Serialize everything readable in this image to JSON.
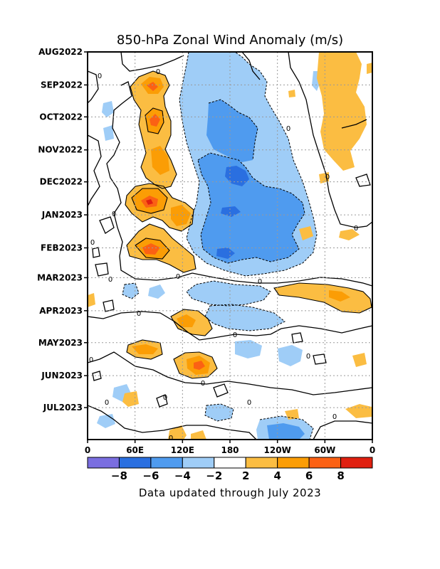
{
  "chart_data": {
    "type": "heatmap",
    "title": "850-hPa Zonal Wind Anomaly (m/s)",
    "footer": "Data updated through July 2023",
    "x_axis": {
      "tick_labels": [
        "0",
        "60E",
        "120E",
        "180",
        "120W",
        "60W",
        "0"
      ],
      "tick_longitudes": [
        0,
        60,
        120,
        180,
        240,
        300,
        360
      ],
      "range": [
        0,
        360
      ]
    },
    "y_axis": {
      "tick_labels": [
        "AUG2022",
        "SEP2022",
        "OCT2022",
        "NOV2022",
        "DEC2022",
        "JAN2023",
        "FEB2023",
        "MAR2023",
        "APR2023",
        "MAY2023",
        "JUN2023",
        "JUL2023"
      ],
      "range": [
        "2022-08-01",
        "2023-07-31"
      ],
      "direction": "top-to-bottom"
    },
    "grid": true,
    "zero_contour_label": "0",
    "colorbar": {
      "levels": [
        -8,
        -6,
        -4,
        -2,
        2,
        4,
        6,
        8
      ],
      "tick_labels": [
        "-8",
        "-6",
        "-4",
        "-2",
        "2",
        "4",
        "6",
        "8"
      ],
      "colors": [
        "#7a6ee0",
        "#2a6fe0",
        "#4f9bef",
        "#9fcdf7",
        "#ffffff",
        "#fbbd42",
        "#fb9d05",
        "#fb6114",
        "#e02010"
      ]
    },
    "anomaly_regions": [
      {
        "name": "warm-west-pacific-sep",
        "lon": [
          70,
          110
        ],
        "date": [
          "2022-08-20",
          "2022-09-10"
        ],
        "peak": 8
      },
      {
        "name": "warm-west-pacific-oct",
        "lon": [
          75,
          105
        ],
        "date": [
          "2022-09-20",
          "2022-10-20"
        ],
        "peak": 7
      },
      {
        "name": "warm-west-pacific-nov",
        "lon": [
          75,
          110
        ],
        "date": [
          "2022-10-25",
          "2022-12-10"
        ],
        "peak": 6
      },
      {
        "name": "warm-west-pacific-jan",
        "lon": [
          60,
          115
        ],
        "date": [
          "2022-12-20",
          "2023-01-20"
        ],
        "peak": 8
      },
      {
        "name": "warm-west-pacific-feb",
        "lon": [
          60,
          110
        ],
        "date": [
          "2023-01-25",
          "2023-02-20"
        ],
        "peak": 8
      },
      {
        "name": "warm-east-pacific-apr",
        "lon": [
          250,
          360
        ],
        "date": [
          "2023-03-05",
          "2023-03-25"
        ],
        "peak": 4
      },
      {
        "name": "warm-west-pacific-apr",
        "lon": [
          110,
          155
        ],
        "date": [
          "2023-03-25",
          "2023-04-25"
        ],
        "peak": 5
      },
      {
        "name": "warm-indian-ocean-may",
        "lon": [
          55,
          100
        ],
        "date": [
          "2023-04-25",
          "2023-05-15"
        ],
        "peak": 6
      },
      {
        "name": "warm-dateline-may",
        "lon": [
          110,
          160
        ],
        "date": [
          "2023-05-01",
          "2023-06-01"
        ],
        "peak": 6
      },
      {
        "name": "warm-east-pacific-sep",
        "lon": [
          290,
          340
        ],
        "date": [
          "2022-08-01",
          "2022-12-15"
        ],
        "peak": 4
      },
      {
        "name": "easterly-central-pacific",
        "lon": [
          140,
          270
        ],
        "date": [
          "2022-08-01",
          "2023-03-01"
        ],
        "peak": -8
      },
      {
        "name": "easterly-jan",
        "lon": [
          160,
          230
        ],
        "date": [
          "2022-12-15",
          "2023-02-15"
        ],
        "peak": -6
      },
      {
        "name": "easterly-feb",
        "lon": [
          155,
          240
        ],
        "date": [
          "2023-01-25",
          "2023-02-25"
        ],
        "peak": -6
      },
      {
        "name": "easterly-apr",
        "lon": [
          170,
          240
        ],
        "date": [
          "2023-03-15",
          "2023-04-10"
        ],
        "peak": -4
      },
      {
        "name": "easterly-jul",
        "lon": [
          220,
          280
        ],
        "date": [
          "2023-07-05",
          "2023-07-31"
        ],
        "peak": -4
      }
    ]
  }
}
